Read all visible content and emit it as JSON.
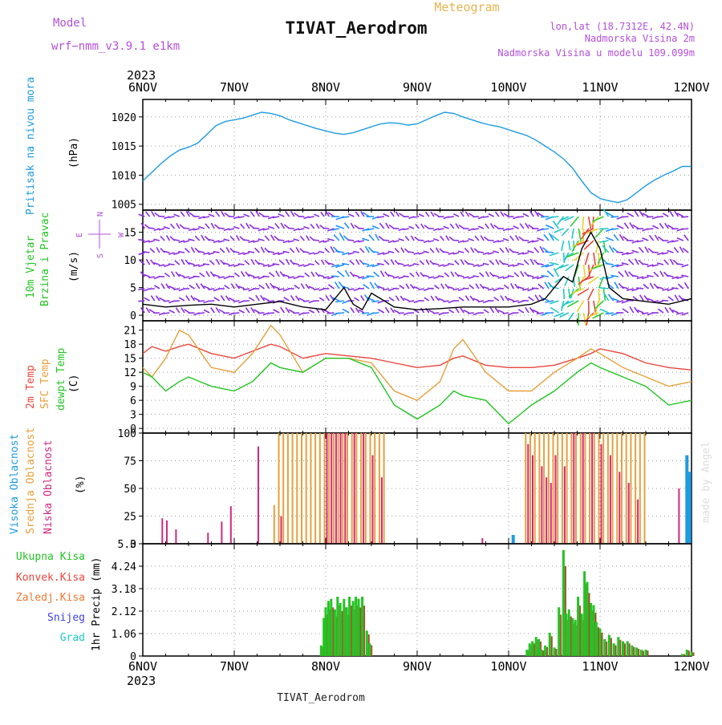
{
  "header": {
    "model_label": "Model",
    "model_name": "wrf−nmm_v3.9.1  e1km",
    "title": "TIVAT_Aerodrom",
    "subtitle": "Meteogram",
    "coords": "lon,lat (18.7312E, 42.4N)",
    "elevation": "Nadmorska Visina 2m",
    "model_elevation": "Nadmorska Visina u modelu 109.099m",
    "watermark": "made by Angel",
    "footer": "TIVAT_Aerodrom"
  },
  "colors": {
    "pressure": "#1e9be0",
    "temp2m": "#e8463c",
    "sfc_temp": "#e6a03c",
    "dewpt": "#22c422",
    "high_cloud": "#1e9be0",
    "mid_cloud": "#e6a03c",
    "low_cloud": "#d2287e",
    "total_precip": "#22c422",
    "conv_precip": "#e8463c",
    "frz_precip": "#f07832",
    "snow": "#4040e0",
    "graupel": "#20c8c8",
    "wind_label": "#22c422",
    "label_purple": "#b450dc"
  },
  "chart_data": [
    {
      "type": "line",
      "panel": "pressure",
      "ylabel": [
        "Pritisak na nivou mora",
        "(hPa)"
      ],
      "yticks": [
        1005,
        1010,
        1015,
        1020
      ],
      "ylim": [
        1004,
        1023
      ],
      "xlim": [
        0,
        6
      ],
      "xticks_top": [
        "6NOV",
        "7NOV",
        "8NOV",
        "9NOV",
        "10NOV",
        "11NOV",
        "12NOV"
      ],
      "year_top": "2023",
      "grid": true,
      "series": [
        {
          "color_key": "pressure",
          "x": [
            0,
            0.1,
            0.2,
            0.3,
            0.4,
            0.5,
            0.6,
            0.7,
            0.8,
            0.9,
            1.0,
            1.1,
            1.2,
            1.3,
            1.4,
            1.5,
            1.6,
            1.7,
            1.8,
            1.9,
            2.0,
            2.1,
            2.2,
            2.3,
            2.4,
            2.5,
            2.6,
            2.7,
            2.8,
            2.9,
            3.0,
            3.1,
            3.2,
            3.3,
            3.4,
            3.5,
            3.6,
            3.7,
            3.8,
            3.9,
            4.0,
            4.1,
            4.2,
            4.3,
            4.4,
            4.5,
            4.6,
            4.7,
            4.8,
            4.9,
            5.0,
            5.1,
            5.2,
            5.3,
            5.4,
            5.5,
            5.6,
            5.7,
            5.8,
            5.9,
            6.0
          ],
          "values": [
            1009,
            1010.5,
            1012,
            1013.3,
            1014.3,
            1014.8,
            1015.5,
            1017,
            1018.5,
            1019.2,
            1019.5,
            1019.8,
            1020.3,
            1020.8,
            1020.6,
            1020.2,
            1019.5,
            1019,
            1018.5,
            1018,
            1017.6,
            1017.2,
            1017,
            1017.3,
            1017.8,
            1018.3,
            1018.8,
            1019,
            1018.9,
            1018.6,
            1018.8,
            1019.5,
            1020.2,
            1020.8,
            1020.6,
            1020,
            1019.5,
            1019,
            1018.6,
            1018.3,
            1017.8,
            1017.3,
            1016.8,
            1016,
            1015,
            1014,
            1012.8,
            1011.2,
            1009,
            1007,
            1006,
            1005.6,
            1005.3,
            1005.8,
            1007,
            1008.2,
            1009.2,
            1010,
            1010.7,
            1011.5,
            1011.5
          ]
        }
      ]
    },
    {
      "type": "wind",
      "panel": "wind",
      "ylabel": [
        "10m Vjetar",
        "Brzina i Pravac",
        "(m/s)"
      ],
      "compass": [
        "N",
        "S",
        "E",
        "W"
      ],
      "yticks": [
        0,
        5,
        10,
        15
      ],
      "ylim": [
        -1,
        19
      ],
      "xlim": [
        0,
        6
      ],
      "grid": true,
      "series": [
        {
          "name": "speed",
          "x": [
            0,
            0.25,
            0.5,
            0.75,
            1.0,
            1.25,
            1.5,
            1.75,
            2.0,
            2.1,
            2.2,
            2.3,
            2.4,
            2.5,
            2.6,
            2.75,
            3.0,
            3.25,
            3.5,
            3.75,
            4.0,
            4.25,
            4.4,
            4.5,
            4.6,
            4.7,
            4.8,
            4.9,
            5.0,
            5.1,
            5.25,
            5.5,
            5.75,
            6.0
          ],
          "values": [
            2,
            1.5,
            1.8,
            2,
            1.5,
            2,
            2.5,
            1.5,
            1,
            3,
            5,
            2,
            1,
            4,
            3,
            1.5,
            1,
            1.2,
            1.5,
            1.5,
            1.5,
            2,
            3,
            5,
            7,
            6,
            12,
            15,
            12,
            5,
            3,
            2.5,
            2,
            3
          ]
        }
      ]
    },
    {
      "type": "line",
      "panel": "temperature",
      "ylabel_lines": [
        "2m Temp",
        "SFC Temp",
        "dewpt Temp",
        "(C)"
      ],
      "yticks": [
        0,
        3,
        6,
        9,
        12,
        15,
        18,
        21
      ],
      "ylim": [
        -1,
        23
      ],
      "xlim": [
        0,
        6
      ],
      "grid": true,
      "series": [
        {
          "name": "2m Temp",
          "color_key": "temp2m",
          "x": [
            0,
            0.1,
            0.25,
            0.4,
            0.5,
            0.75,
            1.0,
            1.2,
            1.4,
            1.5,
            1.75,
            2.0,
            2.25,
            2.5,
            2.75,
            3.0,
            3.25,
            3.4,
            3.5,
            3.75,
            4.0,
            4.25,
            4.5,
            4.75,
            4.9,
            5.0,
            5.25,
            5.5,
            5.75,
            6.0
          ],
          "values": [
            16,
            17.5,
            16.5,
            17.5,
            18,
            16,
            15,
            16.5,
            18,
            17.5,
            15,
            16,
            15.5,
            15,
            14,
            13,
            13.5,
            15,
            15.5,
            13.5,
            13,
            13,
            13.5,
            15,
            16,
            17,
            16,
            14,
            13,
            12.5
          ]
        },
        {
          "name": "SFC Temp",
          "color_key": "sfc_temp",
          "x": [
            0,
            0.1,
            0.25,
            0.4,
            0.5,
            0.75,
            1.0,
            1.2,
            1.4,
            1.5,
            1.75,
            2.0,
            2.25,
            2.5,
            2.75,
            3.0,
            3.25,
            3.4,
            3.5,
            3.75,
            4.0,
            4.25,
            4.5,
            4.75,
            4.9,
            5.0,
            5.25,
            5.5,
            5.75,
            6.0
          ],
          "values": [
            13,
            11,
            15,
            21,
            20,
            13,
            12,
            16,
            22,
            20,
            12,
            15,
            15,
            14,
            8,
            6,
            10,
            17,
            19,
            12,
            8,
            8,
            12,
            15,
            17,
            16,
            13,
            11,
            9,
            10
          ]
        },
        {
          "name": "dewpt Temp",
          "color_key": "dewpt",
          "x": [
            0,
            0.1,
            0.25,
            0.4,
            0.5,
            0.75,
            1.0,
            1.2,
            1.4,
            1.5,
            1.75,
            2.0,
            2.25,
            2.5,
            2.75,
            3.0,
            3.25,
            3.4,
            3.5,
            3.75,
            4.0,
            4.25,
            4.5,
            4.75,
            4.9,
            5.0,
            5.25,
            5.5,
            5.75,
            6.0
          ],
          "values": [
            12,
            11,
            8,
            10,
            11,
            9,
            8,
            10,
            14,
            13,
            12,
            15,
            15,
            13,
            5,
            2,
            5,
            8,
            7,
            6,
            1,
            5,
            8,
            12,
            14,
            13,
            11,
            9,
            5,
            6
          ]
        }
      ]
    },
    {
      "type": "bar",
      "panel": "cloud",
      "ylabel_lines": [
        "Visoka Oblacnost",
        "Srednja Oblacnost",
        "Niska Oblacnost",
        "(%)"
      ],
      "yticks": [
        0,
        25,
        50,
        75,
        100
      ],
      "ylim": [
        0,
        100
      ],
      "xlim": [
        0,
        6
      ],
      "grid": true,
      "series": [
        {
          "name": "Niska Oblacnost",
          "color_key": "low_cloud",
          "x": [
            0.2,
            0.25,
            0.35,
            0.7,
            0.85,
            0.95,
            1.25,
            1.5,
            2.0,
            2.05,
            2.1,
            2.15,
            2.2,
            2.3,
            2.4,
            2.5,
            2.6,
            3.7,
            4.2,
            4.25,
            4.35,
            4.4,
            4.45,
            4.5,
            4.6,
            4.7,
            4.8,
            4.9,
            5.0,
            5.1,
            5.2,
            5.3,
            5.4,
            5.85,
            5.95
          ],
          "values": [
            23,
            21,
            13,
            10,
            20,
            34,
            88,
            25,
            100,
            100,
            100,
            100,
            100,
            100,
            100,
            80,
            60,
            5,
            90,
            80,
            70,
            60,
            55,
            80,
            70,
            100,
            100,
            100,
            90,
            80,
            65,
            55,
            40,
            50,
            45
          ]
        },
        {
          "name": "Srednja Oblacnost",
          "color_key": "mid_cloud",
          "x": [
            1.45,
            1.5,
            1.55,
            1.6,
            1.65,
            1.7,
            1.75,
            1.8,
            1.85,
            1.9,
            1.95,
            2.0,
            2.05,
            2.1,
            2.15,
            2.2,
            2.25,
            2.3,
            2.35,
            2.4,
            2.45,
            2.5,
            2.55,
            2.6,
            2.65,
            4.2,
            4.25,
            4.3,
            4.35,
            4.4,
            4.45,
            4.5,
            4.55,
            4.6,
            4.65,
            4.7,
            4.75,
            4.8,
            4.85,
            4.9,
            4.95,
            5.0,
            5.05,
            5.1,
            5.15,
            5.2,
            5.25,
            5.3,
            5.35,
            5.4,
            5.45,
            5.5
          ],
          "values": [
            35,
            100,
            100,
            100,
            100,
            100,
            100,
            100,
            100,
            100,
            100,
            100,
            100,
            100,
            100,
            100,
            100,
            100,
            100,
            100,
            100,
            100,
            100,
            100,
            100,
            100,
            100,
            100,
            100,
            100,
            100,
            100,
            100,
            100,
            100,
            100,
            100,
            100,
            100,
            100,
            100,
            100,
            100,
            100,
            100,
            100,
            100,
            100,
            100,
            100,
            100,
            100
          ]
        },
        {
          "name": "Visoka Oblacnost",
          "color_key": "high_cloud",
          "x": [
            4.05,
            5.95,
            5.98
          ],
          "values": [
            8,
            80,
            65
          ]
        }
      ]
    },
    {
      "type": "bar",
      "panel": "precip",
      "ylabel_lines": [
        "Ukupna  Kisa",
        "Konvek.Kisa",
        "Zaledj.Kisa",
        "Snijeg",
        "Grad",
        "1hr Precip (mm)"
      ],
      "yticks": [
        0,
        1.06,
        2.12,
        3.18,
        4.24,
        5.3
      ],
      "ylim": [
        0,
        5.3
      ],
      "xlim": [
        0,
        6
      ],
      "xticks_bottom": [
        "6NOV",
        "7NOV",
        "8NOV",
        "9NOV",
        "10NOV",
        "11NOV",
        "12NOV"
      ],
      "year_bottom": "2023",
      "grid": true,
      "series": [
        {
          "name": "Ukupna  Kisa",
          "color_key": "total_precip",
          "x": [
            1.95,
            1.98,
            2.0,
            2.03,
            2.06,
            2.1,
            2.13,
            2.16,
            2.2,
            2.23,
            2.26,
            2.3,
            2.33,
            2.36,
            2.4,
            2.45,
            2.48,
            4.2,
            4.23,
            4.26,
            4.3,
            4.33,
            4.36,
            4.4,
            4.45,
            4.5,
            4.55,
            4.6,
            4.63,
            4.66,
            4.7,
            4.73,
            4.76,
            4.8,
            4.83,
            4.86,
            4.9,
            4.93,
            4.96,
            5.0,
            5.05,
            5.1,
            5.15,
            5.2,
            5.25,
            5.3,
            5.35,
            5.4,
            5.45,
            5.5,
            5.9,
            5.95,
            6.0
          ],
          "values": [
            0.5,
            1.8,
            2.3,
            2.6,
            2.7,
            2.2,
            2.8,
            2.5,
            2.7,
            2.3,
            2.8,
            2.6,
            2.8,
            2.7,
            2.8,
            1.2,
            0.6,
            0.3,
            0.6,
            0.7,
            0.9,
            0.8,
            0.3,
            0.5,
            1.1,
            0.4,
            2.3,
            5.0,
            2.0,
            2.2,
            1.8,
            1.7,
            2.8,
            2.0,
            4.0,
            3.5,
            2.5,
            2.4,
            1.6,
            1.3,
            0.8,
            1.0,
            0.6,
            0.9,
            0.7,
            0.7,
            0.5,
            0.4,
            0.3,
            0.3,
            0.1,
            0.3,
            0.2
          ]
        }
      ]
    }
  ]
}
